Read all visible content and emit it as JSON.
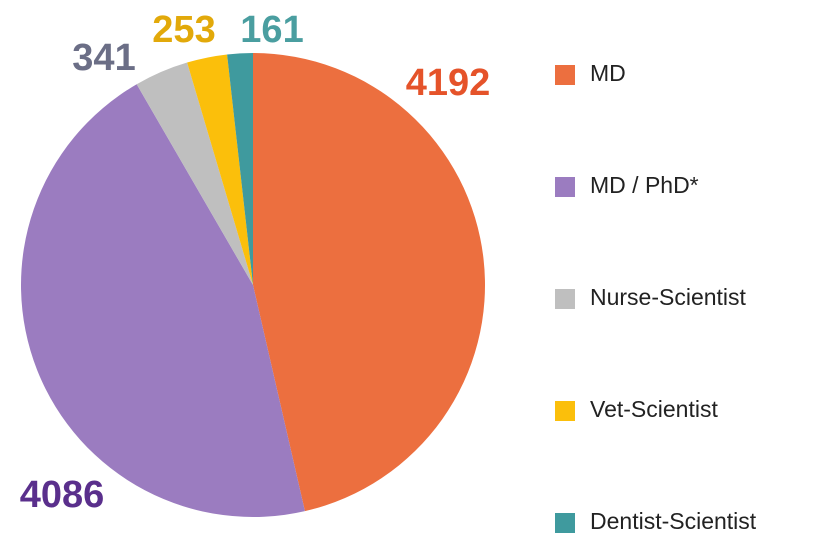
{
  "chart_data": {
    "type": "pie",
    "categories": [
      "MD",
      "MD / PhD*",
      "Nurse-Scientist",
      "Vet-Scientist",
      "Dentist-Scientist"
    ],
    "values": [
      4192,
      4086,
      341,
      253,
      161
    ],
    "colors": [
      "#ec6f3f",
      "#9b7cc0",
      "#bfbfbf",
      "#fbbf0b",
      "#3f9a9e"
    ],
    "label_colors": [
      "#e5532a",
      "#5a2f8c",
      "#6b6e86",
      "#e2a90a",
      "#4a9ea0"
    ],
    "legend": "right"
  }
}
